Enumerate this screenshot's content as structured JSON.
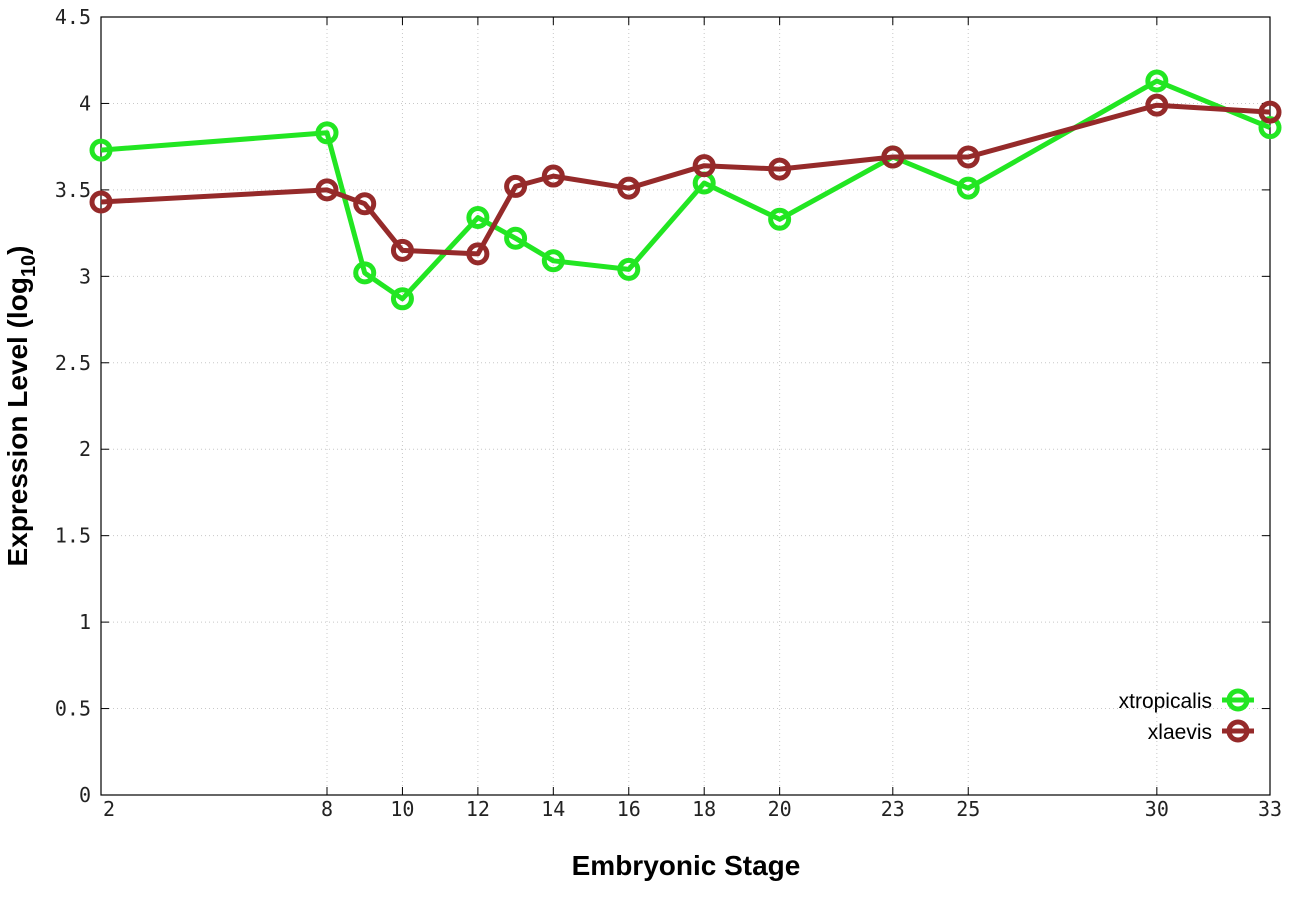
{
  "chart_data": {
    "type": "line",
    "title": "",
    "xlabel": "Embryonic Stage",
    "ylabel_main": "Expression Level (log",
    "ylabel_sub": "10",
    "ylabel_close": ")",
    "x": [
      2,
      8,
      9,
      10,
      12,
      13,
      14,
      16,
      18,
      20,
      23,
      25,
      30,
      33
    ],
    "x_tick_labels": [
      "2",
      "8",
      "10",
      "12",
      "14",
      "16",
      "18",
      "20",
      "23",
      "25",
      "30",
      "33"
    ],
    "x_tick_stages": [
      2,
      8,
      10,
      12,
      14,
      16,
      18,
      20,
      23,
      25,
      30,
      33
    ],
    "xlim": [
      2,
      33
    ],
    "y_tick_labels": [
      "0",
      "0.5",
      "1",
      "1.5",
      "2",
      "2.5",
      "3",
      "3.5",
      "4",
      "4.5"
    ],
    "y_tick_values": [
      0,
      0.5,
      1,
      1.5,
      2,
      2.5,
      3,
      3.5,
      4,
      4.5
    ],
    "ylim": [
      0,
      4.5
    ],
    "grid": true,
    "legend_position": "bottom-right",
    "series": [
      {
        "name": "xtropicalis",
        "color": "#22e622",
        "values": [
          3.73,
          3.83,
          3.02,
          2.87,
          3.34,
          3.22,
          3.09,
          3.04,
          3.54,
          3.33,
          3.69,
          3.51,
          4.13,
          3.86
        ]
      },
      {
        "name": "xlaevis",
        "color": "#952a2a",
        "values": [
          3.43,
          3.5,
          3.42,
          3.15,
          3.13,
          3.52,
          3.58,
          3.51,
          3.64,
          3.62,
          3.69,
          3.69,
          3.99,
          3.95
        ]
      }
    ]
  }
}
